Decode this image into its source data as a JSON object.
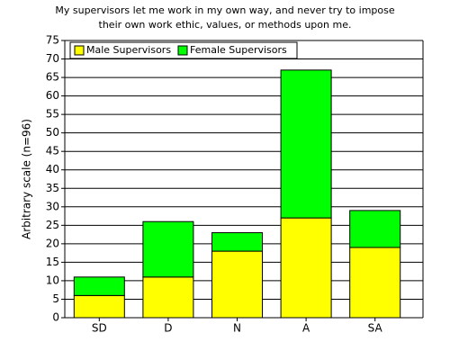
{
  "chart_data": {
    "type": "stacked_bar",
    "title": [
      "My supervisors let me work in my own way, and never try to impose",
      "their own work ethic, values, or methods upon me."
    ],
    "y_label": "Arbitrary scale (n=96)",
    "categories": [
      "SD",
      "D",
      "N",
      "A",
      "SA"
    ],
    "series": [
      {
        "name": "Male Supervisors",
        "color": "#ffff00",
        "values": [
          6,
          11,
          18,
          27,
          19
        ]
      },
      {
        "name": "Female Supervisors",
        "color": "#00ff00",
        "values": [
          5,
          15,
          5,
          40,
          10
        ]
      }
    ],
    "ylim": [
      0,
      75
    ],
    "yticks": [
      0,
      5,
      10,
      15,
      20,
      25,
      30,
      35,
      40,
      45,
      50,
      55,
      60,
      65,
      70,
      75
    ],
    "grid": true,
    "legend": "top-left"
  }
}
